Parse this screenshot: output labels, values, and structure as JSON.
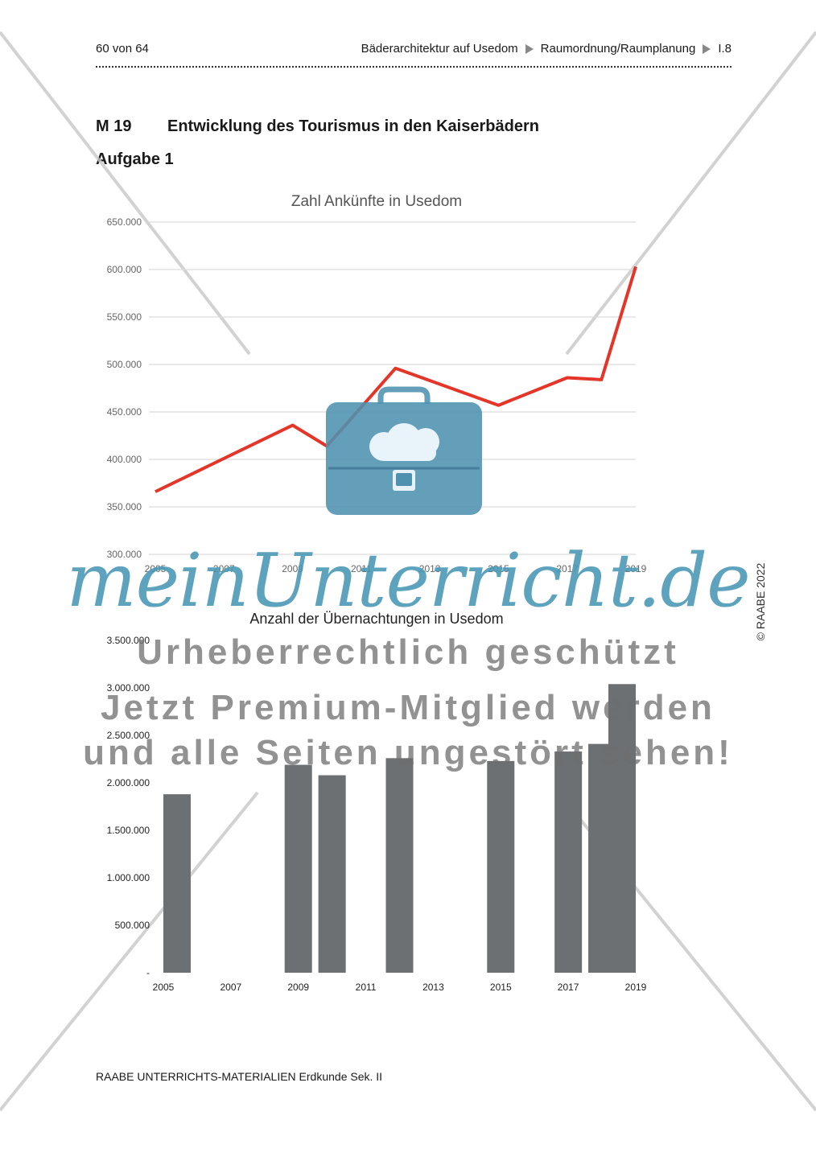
{
  "header": {
    "page_info": "60 von 64",
    "crumbs": [
      "Bäderarchitektur auf Usedom",
      "Raumordnung/Raumplanung",
      "I.8"
    ]
  },
  "section": {
    "code": "M 19",
    "title": "Entwicklung des Tourismus in den Kaiserbädern",
    "task": "Aufgabe 1"
  },
  "copyright": "© RAABE 2022",
  "footer": "RAABE UNTERRICHTS-MATERIALIEN Erdkunde Sek. II",
  "watermark": {
    "brand": "meinUnterricht.de",
    "line1": "Urheberrechtlich geschützt",
    "line2": "Jetzt Premium-Mitglied werden",
    "line3": "und alle Seiten ungestört sehen!"
  },
  "colors": {
    "line": "#e53528",
    "bar": "#6d7073",
    "brand": "#4a96b4"
  },
  "chart_data": [
    {
      "type": "line",
      "title": "Zahl Ankünfte in Usedom",
      "x": [
        2005,
        2009,
        2010,
        2012,
        2015,
        2017,
        2018,
        2019
      ],
      "x_ticks": [
        "2005",
        "2007",
        "2009",
        "2011",
        "2013",
        "2015",
        "2017",
        "2019"
      ],
      "series": [
        {
          "values": [
            366000,
            436000,
            414000,
            496000,
            457000,
            486000,
            484000,
            603000
          ]
        }
      ],
      "y_ticks": [
        "300.000",
        "350.000",
        "400.000",
        "450.000",
        "500.000",
        "550.000",
        "600.000",
        "650.000"
      ],
      "ylim": [
        300000,
        650000
      ],
      "xlim": [
        2005,
        2019
      ],
      "grid": true
    },
    {
      "type": "bar",
      "title": "Anzahl der Übernachtungen in Usedom",
      "x": [
        2005,
        2009,
        2010,
        2012,
        2015,
        2017,
        2018,
        2019
      ],
      "x_ticks": [
        "2005",
        "2007",
        "2009",
        "2011",
        "2013",
        "2015",
        "2017",
        "2019"
      ],
      "series": [
        {
          "values": [
            1880000,
            2190000,
            2080000,
            2260000,
            2230000,
            2330000,
            2410000,
            3040000
          ]
        }
      ],
      "y_ticks": [
        "-",
        "500.000",
        "1.000.000",
        "1.500.000",
        "2.000.000",
        "2.500.000",
        "3.000.000",
        "3.500.000"
      ],
      "ylim": [
        0,
        3500000
      ],
      "xlim": [
        2005,
        2019
      ],
      "grid": false
    }
  ]
}
